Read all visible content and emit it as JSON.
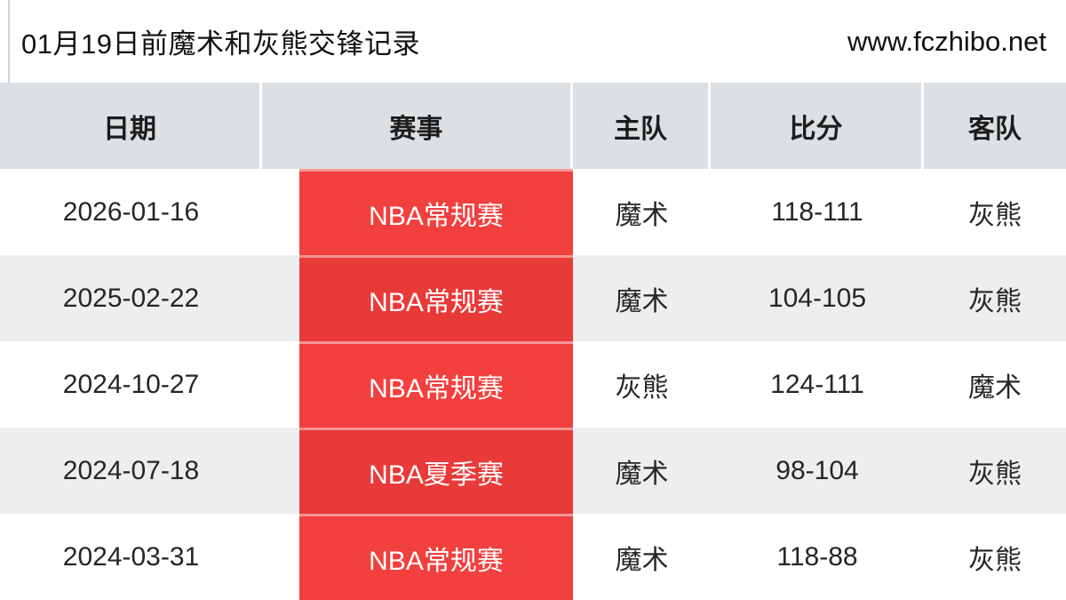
{
  "page": {
    "title": "01月19日前魔术和灰熊交锋记录",
    "site_url": "www.fczhibo.net"
  },
  "table": {
    "columns": [
      "日期",
      "赛事",
      "主队",
      "比分",
      "客队"
    ],
    "rows": [
      {
        "date": "2026-01-16",
        "event": "NBA常规赛",
        "home": "魔术",
        "score": "118-111",
        "away": "灰熊"
      },
      {
        "date": "2025-02-22",
        "event": "NBA常规赛",
        "home": "魔术",
        "score": "104-105",
        "away": "灰熊"
      },
      {
        "date": "2024-10-27",
        "event": "NBA常规赛",
        "home": "灰熊",
        "score": "124-111",
        "away": "魔术"
      },
      {
        "date": "2024-07-18",
        "event": "NBA夏季赛",
        "home": "魔术",
        "score": "98-104",
        "away": "灰熊"
      },
      {
        "date": "2024-03-31",
        "event": "NBA常规赛",
        "home": "魔术",
        "score": "118-88",
        "away": "灰熊"
      }
    ]
  },
  "colors": {
    "red_bright": "#f2403e",
    "red_dark": "#e93a3a",
    "header_bg": "#dce0e3",
    "row_alt_bg": "#eceef0",
    "strip_blue": "#8fc1e9"
  }
}
